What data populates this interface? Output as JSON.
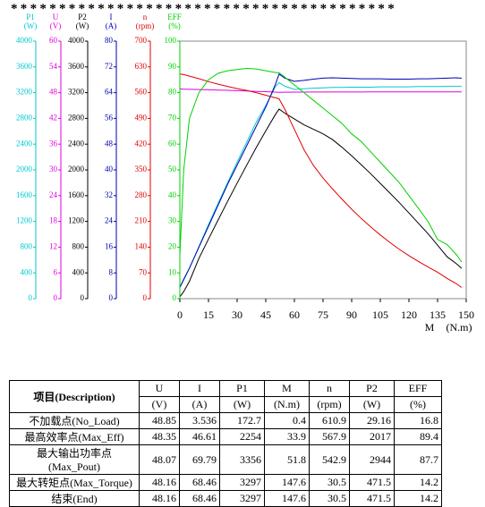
{
  "header": "****************************************",
  "chart_data": {
    "type": "line",
    "xlabel": "M",
    "xunit": "(N.m)",
    "x": [
      0,
      2,
      5,
      10,
      15,
      20,
      25,
      30,
      35,
      40,
      45,
      50,
      52,
      55,
      60,
      65,
      70,
      75,
      80,
      85,
      90,
      95,
      100,
      105,
      110,
      115,
      120,
      125,
      130,
      135,
      140,
      145,
      147.6
    ],
    "xlim": [
      0,
      150
    ],
    "xticks": [
      0,
      15,
      30,
      45,
      60,
      75,
      90,
      105,
      120,
      135,
      150
    ],
    "series": [
      {
        "name": "P1",
        "unit": "(W)",
        "color": "#00c8d0",
        "ylim": [
          0,
          4000
        ],
        "yticks": [
          0,
          400,
          800,
          1200,
          1600,
          2000,
          2400,
          2800,
          3200,
          3600,
          4000
        ],
        "values": [
          172.7,
          290,
          470,
          810,
          1150,
          1480,
          1800,
          2120,
          2430,
          2740,
          3000,
          3290,
          3356,
          3300,
          3250,
          3260,
          3270,
          3275,
          3280,
          3280,
          3285,
          3285,
          3285,
          3290,
          3290,
          3290,
          3290,
          3295,
          3295,
          3295,
          3297,
          3297,
          3297
        ]
      },
      {
        "name": "U",
        "unit": "(V)",
        "color": "#e000e0",
        "ylim": [
          0,
          60
        ],
        "yticks": [
          0,
          6,
          12,
          18,
          24,
          30,
          36,
          42,
          48,
          54,
          60
        ],
        "values": [
          48.85,
          48.82,
          48.78,
          48.72,
          48.66,
          48.6,
          48.54,
          48.46,
          48.38,
          48.3,
          48.22,
          48.12,
          48.07,
          48.1,
          48.12,
          48.13,
          48.14,
          48.14,
          48.15,
          48.15,
          48.15,
          48.15,
          48.16,
          48.16,
          48.16,
          48.16,
          48.16,
          48.16,
          48.16,
          48.16,
          48.16,
          48.16,
          48.16
        ]
      },
      {
        "name": "P2",
        "unit": "(W)",
        "color": "#000000",
        "ylim": [
          0,
          4000
        ],
        "yticks": [
          0,
          400,
          800,
          1200,
          1600,
          2000,
          2400,
          2800,
          3200,
          3600,
          4000
        ],
        "values": [
          29.16,
          110,
          270,
          626,
          927,
          1221,
          1510,
          1794,
          2074,
          2346,
          2606,
          2859,
          2944,
          2880,
          2790,
          2700,
          2630,
          2560,
          2470,
          2350,
          2220,
          2080,
          1940,
          1790,
          1640,
          1490,
          1330,
          1170,
          1010,
          830,
          650,
          540,
          471.5
        ]
      },
      {
        "name": "I",
        "unit": "(A)",
        "color": "#0000b0",
        "ylim": [
          0,
          80
        ],
        "yticks": [
          0,
          8,
          16,
          24,
          32,
          40,
          48,
          56,
          64,
          72,
          80
        ],
        "values": [
          3.536,
          6,
          9.5,
          16,
          22.5,
          29,
          35.5,
          41.5,
          47.5,
          53.5,
          59.5,
          66.5,
          69.79,
          68.5,
          67.5,
          67.8,
          68.2,
          68.5,
          68.6,
          68.5,
          68.4,
          68.3,
          68.3,
          68.3,
          68.2,
          68.2,
          68.2,
          68.3,
          68.3,
          68.4,
          68.5,
          68.6,
          68.46
        ]
      },
      {
        "name": "n",
        "unit": "(rpm)",
        "color": "#e00000",
        "ylim": [
          0,
          700
        ],
        "yticks": [
          0,
          70,
          140,
          210,
          280,
          350,
          420,
          490,
          560,
          630,
          700
        ],
        "values": [
          610.9,
          609,
          605,
          598,
          590,
          583,
          577,
          571,
          566,
          560,
          553,
          546,
          542.9,
          515,
          460,
          405,
          362,
          328,
          298,
          270,
          243,
          218,
          195,
          173,
          153,
          134,
          117,
          101,
          86,
          72,
          55,
          40,
          30.5
        ]
      },
      {
        "name": "EFF",
        "unit": "(%)",
        "color": "#00d000",
        "ylim": [
          0,
          100
        ],
        "yticks": [
          0,
          10,
          20,
          30,
          40,
          50,
          60,
          70,
          80,
          90,
          100
        ],
        "values": [
          16.8,
          50,
          70,
          80,
          85,
          87.5,
          88.5,
          89,
          89.4,
          89.2,
          88.5,
          87.8,
          87.7,
          86,
          83,
          80,
          77,
          74,
          71,
          68,
          64,
          61,
          57,
          53,
          49,
          45,
          40,
          35,
          30,
          23,
          21,
          17,
          14.2
        ]
      }
    ]
  },
  "table": {
    "description": "项目(Description)",
    "columns": [
      "U",
      "I",
      "P1",
      "M",
      "n",
      "P2",
      "EFF"
    ],
    "units": [
      "(V)",
      "(A)",
      "(W)",
      "(N.m)",
      "(rpm)",
      "(W)",
      "(%)"
    ],
    "rows": [
      [
        "不加载点(No_Load)",
        "48.85",
        "3.536",
        "172.7",
        "0.4",
        "610.9",
        "29.16",
        "16.8"
      ],
      [
        "最高效率点(Max_Eff)",
        "48.35",
        "46.61",
        "2254",
        "33.9",
        "567.9",
        "2017",
        "89.4"
      ],
      [
        "最大输出功率点(Max_Pout)",
        "48.07",
        "69.79",
        "3356",
        "51.8",
        "542.9",
        "2944",
        "87.7"
      ],
      [
        "最大转矩点(Max_Torque)",
        "48.16",
        "68.46",
        "3297",
        "147.6",
        "30.5",
        "471.5",
        "14.2"
      ],
      [
        "结束(End)",
        "48.16",
        "68.46",
        "3297",
        "147.6",
        "30.5",
        "471.5",
        "14.2"
      ]
    ]
  }
}
